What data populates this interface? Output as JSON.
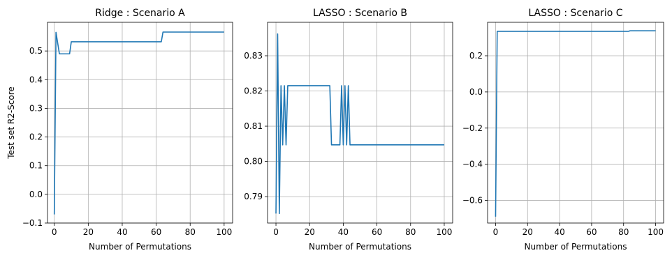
{
  "colors": {
    "line": "#1f77b4",
    "grid": "#b0b0b0"
  },
  "chart_data": [
    {
      "type": "line",
      "title": "Ridge : Scenario A",
      "xlabel": "Number of Permutations",
      "ylabel": "Test set R2-Score",
      "grid": true,
      "xlim": [
        -4,
        105
      ],
      "ylim": [
        -0.1,
        0.6
      ],
      "xticks": [
        0,
        20,
        40,
        60,
        80,
        100
      ],
      "xtick_labels": [
        "0",
        "20",
        "40",
        "60",
        "80",
        "100"
      ],
      "yticks": [
        -0.1,
        0.0,
        0.1,
        0.2,
        0.3,
        0.4,
        0.5
      ],
      "ytick_labels": [
        "−0.1",
        "0.0",
        "0.1",
        "0.2",
        "0.3",
        "0.4",
        "0.5"
      ],
      "series": [
        {
          "x": [
            0,
            1,
            3,
            4,
            9,
            10,
            63,
            64,
            100
          ],
          "values": [
            -0.07,
            0.565,
            0.49,
            0.49,
            0.49,
            0.532,
            0.532,
            0.566,
            0.566
          ]
        }
      ]
    },
    {
      "type": "line",
      "title": "LASSO : Scenario B",
      "xlabel": "Number of Permutations",
      "ylabel": "",
      "grid": true,
      "xlim": [
        -5,
        105
      ],
      "ylim": [
        0.7825,
        0.8395
      ],
      "xticks": [
        0,
        20,
        40,
        60,
        80,
        100
      ],
      "xtick_labels": [
        "0",
        "20",
        "40",
        "60",
        "80",
        "100"
      ],
      "yticks": [
        0.79,
        0.8,
        0.81,
        0.82,
        0.83
      ],
      "ytick_labels": [
        "0.79",
        "0.80",
        "0.81",
        "0.82",
        "0.83"
      ],
      "series": [
        {
          "x": [
            0,
            1,
            2,
            3,
            4,
            5,
            6,
            7,
            32,
            33,
            38,
            39,
            40,
            41,
            42,
            43,
            44,
            100
          ],
          "values": [
            0.7852,
            0.8362,
            0.7852,
            0.8215,
            0.8047,
            0.8215,
            0.8047,
            0.8215,
            0.8215,
            0.8047,
            0.8047,
            0.8215,
            0.8047,
            0.8215,
            0.8047,
            0.8215,
            0.8047,
            0.8047
          ]
        }
      ]
    },
    {
      "type": "line",
      "title": "LASSO : Scenario C",
      "xlabel": "Number of Permutations",
      "ylabel": "",
      "grid": true,
      "xlim": [
        -5,
        105
      ],
      "ylim": [
        -0.725,
        0.385
      ],
      "xticks": [
        0,
        20,
        40,
        60,
        80,
        100
      ],
      "xtick_labels": [
        "0",
        "20",
        "40",
        "60",
        "80",
        "100"
      ],
      "yticks": [
        -0.6,
        -0.4,
        -0.2,
        0.0,
        0.2
      ],
      "ytick_labels": [
        "−0.6",
        "−0.4",
        "−0.2",
        "0.0",
        "0.2"
      ],
      "series": [
        {
          "x": [
            0,
            1,
            83,
            84,
            100
          ],
          "values": [
            -0.69,
            0.335,
            0.335,
            0.338,
            0.338
          ]
        }
      ]
    }
  ]
}
